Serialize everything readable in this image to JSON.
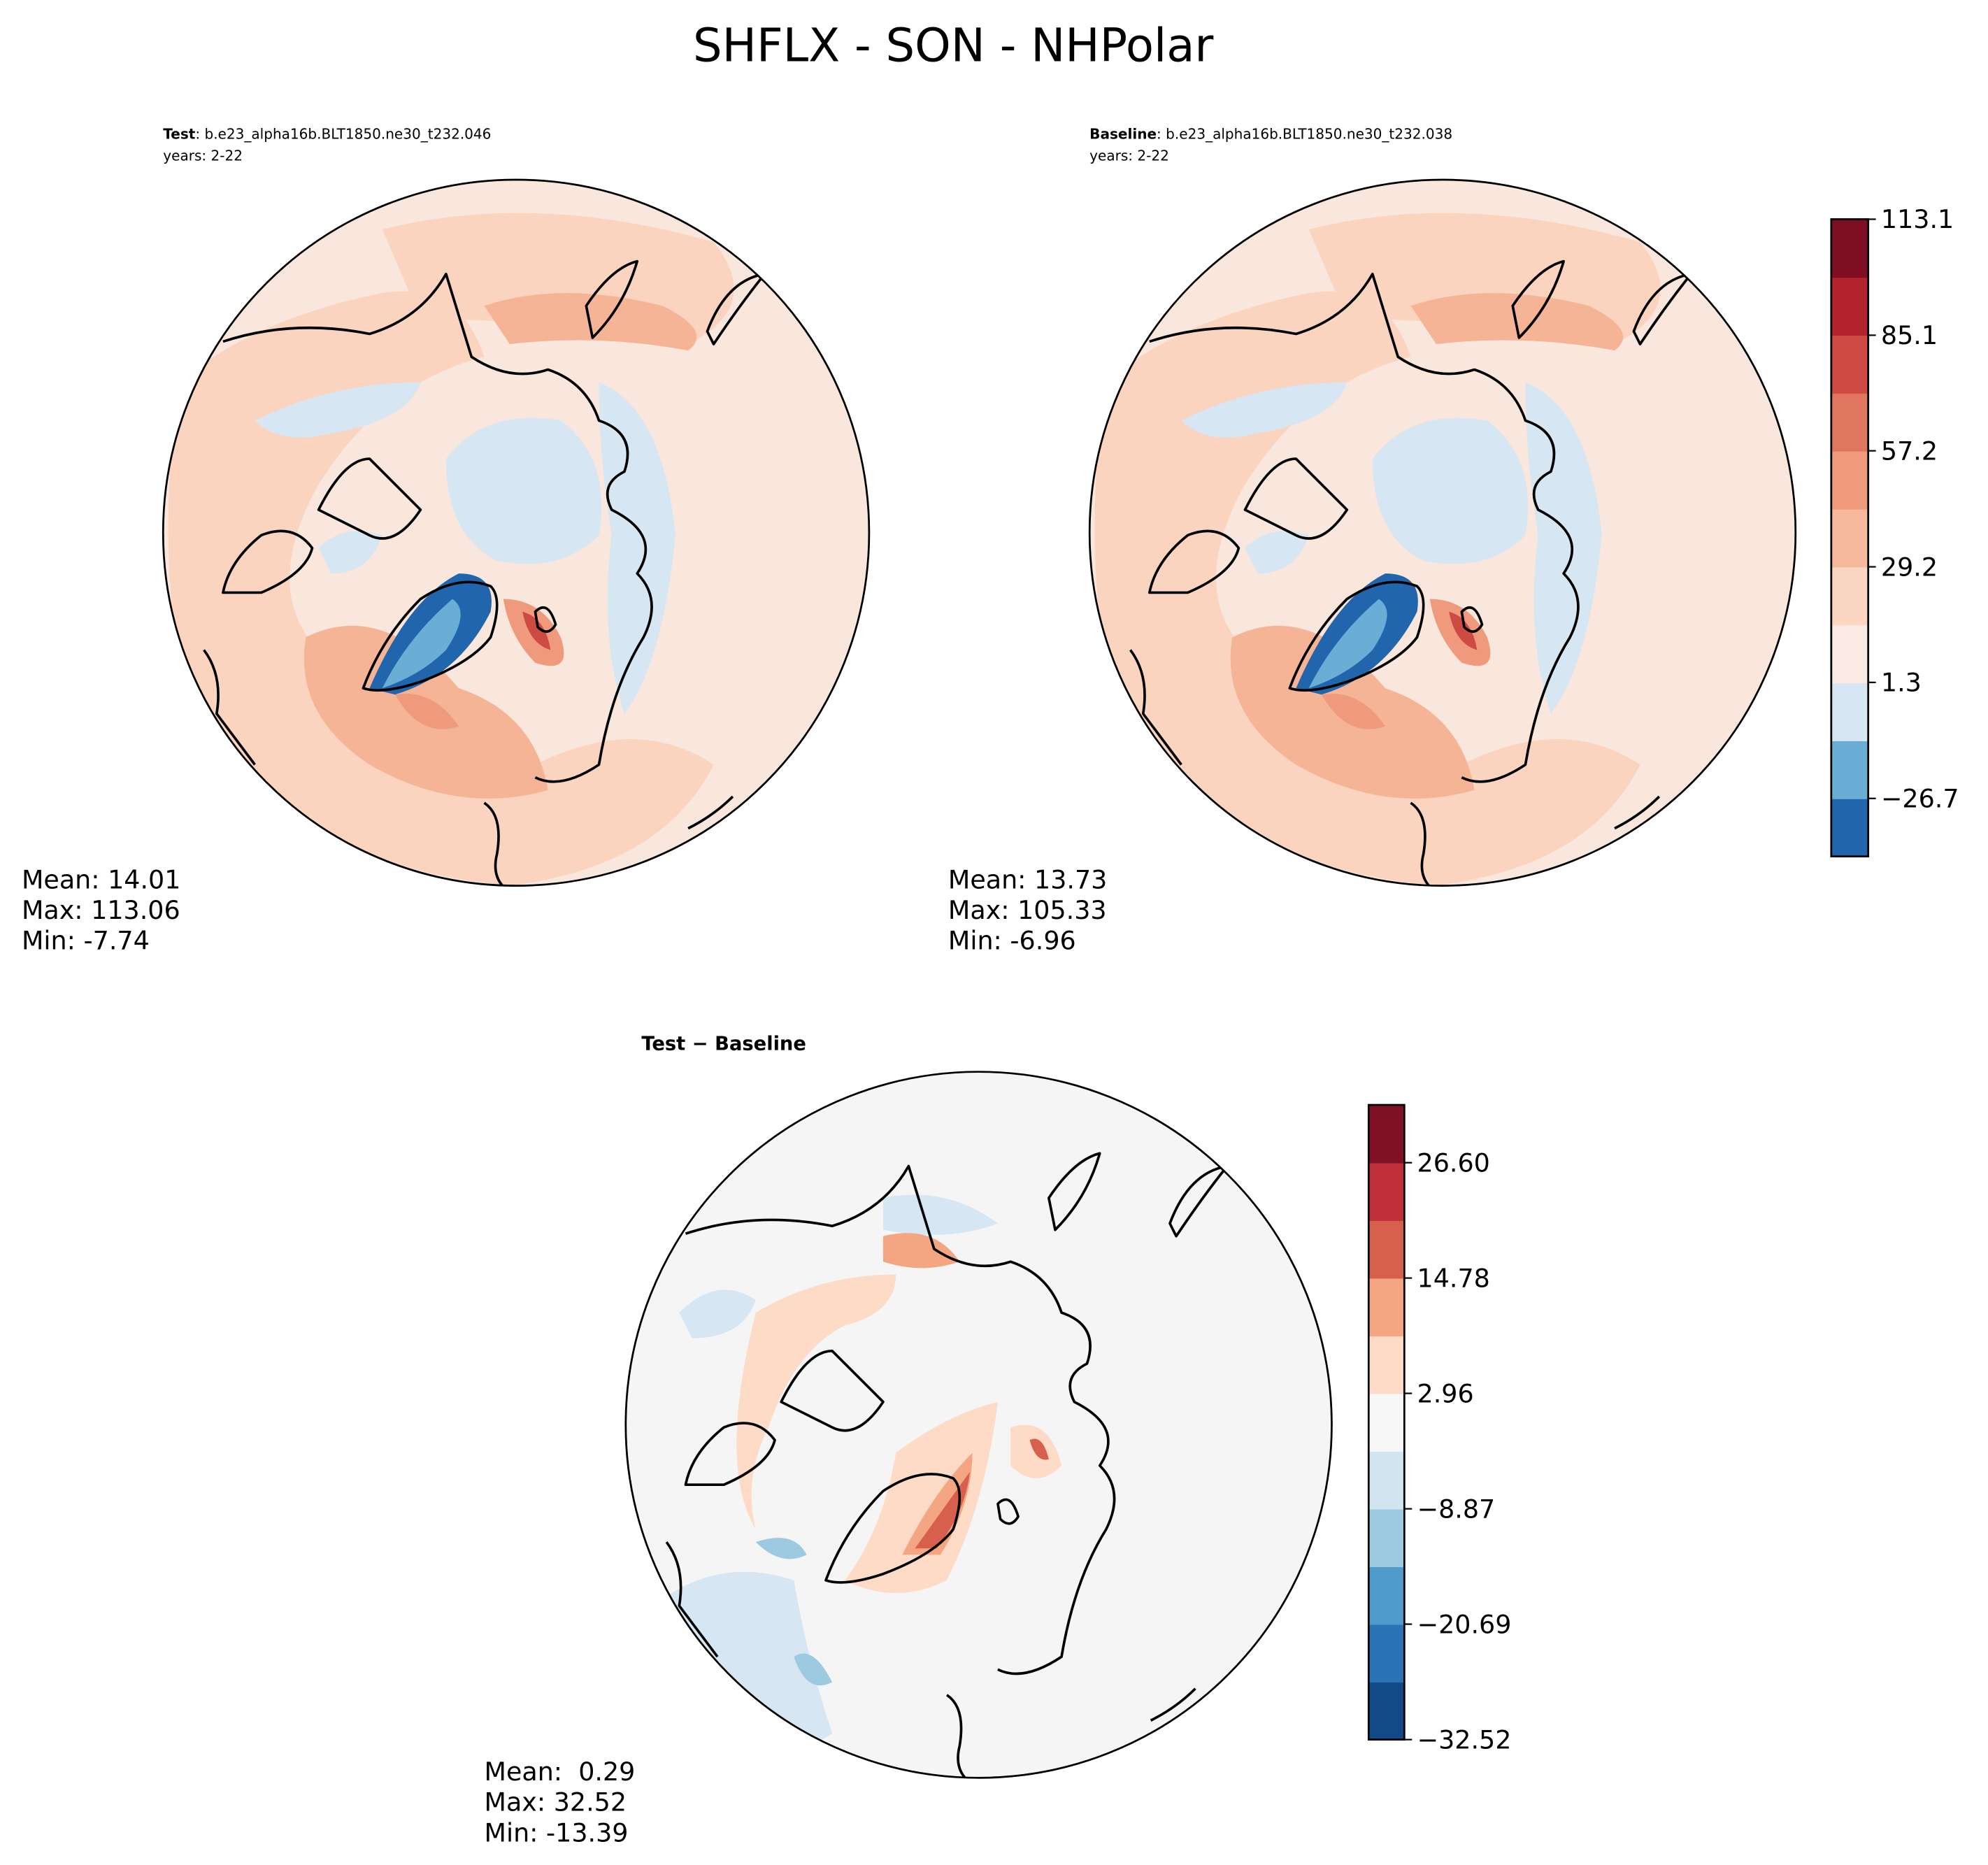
{
  "title": "SHFLX - SON - NHPolar",
  "chart_data": [
    {
      "type": "contour-map",
      "label": "Test",
      "case": ": b.e23_alpha16b.BLT1850.ne30_t232.046",
      "years": "years: 2-22",
      "stats": [
        "Mean: 14.01",
        "Max: 113.06",
        "Min: -7.74"
      ]
    },
    {
      "type": "contour-map",
      "label": "Baseline",
      "case": ": b.e23_alpha16b.BLT1850.ne30_t232.038",
      "years": "years: 2-22",
      "stats": [
        "Mean: 13.73",
        "Max: 105.33",
        "Min: -6.96"
      ],
      "colorbar": {
        "lim": [
          -40.7,
          113.1
        ],
        "ticks": [
          {
            "value": -26.7,
            "label": "−26.7"
          },
          1.3,
          29.2,
          57.2,
          85.1,
          113.1
        ],
        "colors": [
          "#2166ac",
          "#6aaed6",
          "#d6e6f2",
          "#f9ebe4",
          "#fbd7c3",
          "#f7b89c",
          "#ef9a7c",
          "#e07560",
          "#cd4b42",
          "#b3242f",
          "#7f0d24"
        ]
      }
    },
    {
      "type": "contour-map",
      "label": "Test − Baseline",
      "stats": [
        "Mean:  0.29",
        "Max: 32.52",
        "Min: -13.39"
      ],
      "colorbar": {
        "lim": [
          -32.52,
          32.52
        ],
        "ticks": [
          {
            "value": -32.52,
            "label": "−32.52"
          },
          {
            "value": -20.69,
            "label": "−20.69"
          },
          {
            "value": -8.87,
            "label": "−8.87"
          },
          2.96,
          14.78,
          {
            "value": 26.6,
            "label": "26.60"
          }
        ],
        "colors": [
          "#114a86",
          "#2a73b4",
          "#4f9bcb",
          "#9ecae1",
          "#d1e5f0",
          "#f7f7f7",
          "#fddbc7",
          "#f4a582",
          "#d6604d",
          "#c0303a",
          "#801026"
        ]
      }
    }
  ]
}
